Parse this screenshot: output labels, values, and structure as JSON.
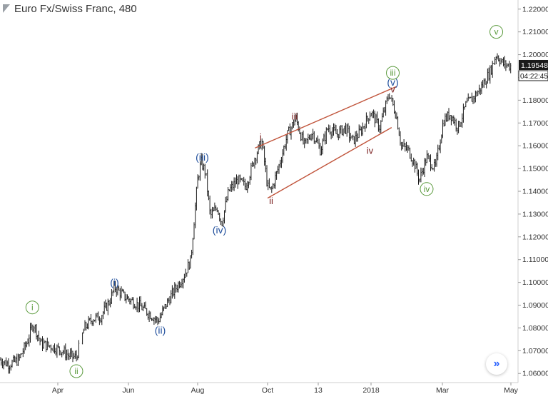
{
  "header": {
    "symbol_title": "Euro Fx/Swiss Franc, 480"
  },
  "price_tags": {
    "last_price": "1.19548",
    "countdown": "04:22:45"
  },
  "nav": {
    "icon": "double-chevron-right-icon"
  },
  "colors": {
    "candle": "#1a1a1a",
    "blue_label": "#1f4e9c",
    "green_label": "#5a9a3c",
    "maroon_label": "#7a1f1f",
    "trendline": "#c0533a",
    "price_tag_bg": "#1a1a1a",
    "axis_text": "#333333"
  },
  "chart_data": {
    "type": "line",
    "title": "Euro Fx/Swiss Franc, 480",
    "xlabel": "",
    "ylabel": "",
    "ylim": [
      1.056,
      1.224
    ],
    "grid": false,
    "y_ticks": [
      "1.22000",
      "1.21000",
      "1.20000",
      "1.19000",
      "1.18000",
      "1.17000",
      "1.16000",
      "1.15000",
      "1.14000",
      "1.13000",
      "1.12000",
      "1.11000",
      "1.10000",
      "1.09000",
      "1.08000",
      "1.07000",
      "1.06000"
    ],
    "x_ticks": [
      "Apr",
      "Jun",
      "Aug",
      "Oct",
      "13",
      "2018",
      "Mar",
      "May"
    ],
    "series": [
      {
        "values": [
          [
            "2017-02-01",
            1.066
          ],
          [
            "2017-02-10",
            1.064
          ],
          [
            "2017-02-20",
            1.066
          ],
          [
            "2017-02-28",
            1.073
          ],
          [
            "2017-03-07",
            1.082
          ],
          [
            "2017-03-15",
            1.073
          ],
          [
            "2017-03-25",
            1.072
          ],
          [
            "2017-04-05",
            1.07
          ],
          [
            "2017-04-10",
            1.068
          ],
          [
            "2017-04-17",
            1.067
          ],
          [
            "2017-04-24",
            1.08
          ],
          [
            "2017-05-01",
            1.084
          ],
          [
            "2017-05-08",
            1.085
          ],
          [
            "2017-05-16",
            1.092
          ],
          [
            "2017-05-20",
            1.098
          ],
          [
            "2017-05-28",
            1.094
          ],
          [
            "2017-06-10",
            1.09
          ],
          [
            "2017-06-20",
            1.086
          ],
          [
            "2017-06-27",
            1.083
          ],
          [
            "2017-07-05",
            1.091
          ],
          [
            "2017-07-12",
            1.097
          ],
          [
            "2017-07-20",
            1.103
          ],
          [
            "2017-07-26",
            1.11
          ],
          [
            "2017-07-29",
            1.128
          ],
          [
            "2017-08-01",
            1.145
          ],
          [
            "2017-08-04",
            1.153
          ],
          [
            "2017-08-08",
            1.148
          ],
          [
            "2017-08-12",
            1.129
          ],
          [
            "2017-08-18",
            1.133
          ],
          [
            "2017-08-22",
            1.126
          ],
          [
            "2017-08-28",
            1.14
          ],
          [
            "2017-09-05",
            1.145
          ],
          [
            "2017-09-12",
            1.142
          ],
          [
            "2017-09-20",
            1.155
          ],
          [
            "2017-09-26",
            1.162
          ],
          [
            "2017-10-01",
            1.142
          ],
          [
            "2017-10-04",
            1.14
          ],
          [
            "2017-10-10",
            1.15
          ],
          [
            "2017-10-18",
            1.165
          ],
          [
            "2017-10-25",
            1.172
          ],
          [
            "2017-11-01",
            1.16
          ],
          [
            "2017-11-08",
            1.166
          ],
          [
            "2017-11-15",
            1.158
          ],
          [
            "2017-11-22",
            1.168
          ],
          [
            "2017-11-30",
            1.165
          ],
          [
            "2017-12-08",
            1.168
          ],
          [
            "2017-12-15",
            1.162
          ],
          [
            "2017-12-22",
            1.166
          ],
          [
            "2018-01-01",
            1.175
          ],
          [
            "2018-01-08",
            1.168
          ],
          [
            "2018-01-16",
            1.183
          ],
          [
            "2018-01-22",
            1.173
          ],
          [
            "2018-01-26",
            1.16
          ],
          [
            "2018-02-01",
            1.158
          ],
          [
            "2018-02-06",
            1.152
          ],
          [
            "2018-02-10",
            1.145
          ],
          [
            "2018-02-16",
            1.155
          ],
          [
            "2018-02-23",
            1.15
          ],
          [
            "2018-03-02",
            1.171
          ],
          [
            "2018-03-08",
            1.174
          ],
          [
            "2018-03-15",
            1.168
          ],
          [
            "2018-03-22",
            1.178
          ],
          [
            "2018-03-30",
            1.182
          ],
          [
            "2018-04-05",
            1.186
          ],
          [
            "2018-04-12",
            1.192
          ],
          [
            "2018-04-18",
            1.2
          ],
          [
            "2018-04-24",
            1.196
          ],
          [
            "2018-05-01",
            1.195
          ]
        ]
      }
    ],
    "annotations": [
      {
        "text": "i",
        "style": "circle-green",
        "at": [
          "2017-03-06",
          1.089
        ]
      },
      {
        "text": "ii",
        "style": "circle-green",
        "at": [
          "2017-04-17",
          1.061
        ]
      },
      {
        "text": "(i)",
        "style": "blue",
        "at": [
          "2017-05-20",
          1.1
        ]
      },
      {
        "text": "(ii)",
        "style": "blue",
        "at": [
          "2017-06-29",
          1.079
        ]
      },
      {
        "text": "(iii)",
        "style": "blue",
        "at": [
          "2017-08-05",
          1.155
        ]
      },
      {
        "text": "(iv)",
        "style": "blue",
        "at": [
          "2017-08-20",
          1.123
        ]
      },
      {
        "text": "i",
        "style": "maroon",
        "at": [
          "2017-09-25",
          1.164
        ]
      },
      {
        "text": "ii",
        "style": "maroon",
        "at": [
          "2017-10-04",
          1.136
        ]
      },
      {
        "text": "iii",
        "style": "maroon",
        "at": [
          "2017-10-24",
          1.173
        ]
      },
      {
        "text": "iv",
        "style": "maroon",
        "at": [
          "2017-12-31",
          1.158
        ]
      },
      {
        "text": "v",
        "style": "maroon",
        "at": [
          "2018-01-19",
          1.185
        ]
      },
      {
        "text": "(v)",
        "style": "blue",
        "at": [
          "2018-01-19",
          1.188
        ]
      },
      {
        "text": "iii",
        "style": "circle-green",
        "at": [
          "2018-01-19",
          1.192
        ]
      },
      {
        "text": "iv",
        "style": "circle-green",
        "at": [
          "2018-02-16",
          1.141
        ]
      },
      {
        "text": "v",
        "style": "circle-green",
        "at": [
          "2018-04-18",
          1.21
        ]
      }
    ],
    "trendlines": [
      {
        "from": [
          "2017-09-20",
          1.159
        ],
        "to": [
          "2018-01-22",
          1.186
        ]
      },
      {
        "from": [
          "2017-10-01",
          1.137
        ],
        "to": [
          "2018-01-18",
          1.168
        ]
      }
    ]
  }
}
